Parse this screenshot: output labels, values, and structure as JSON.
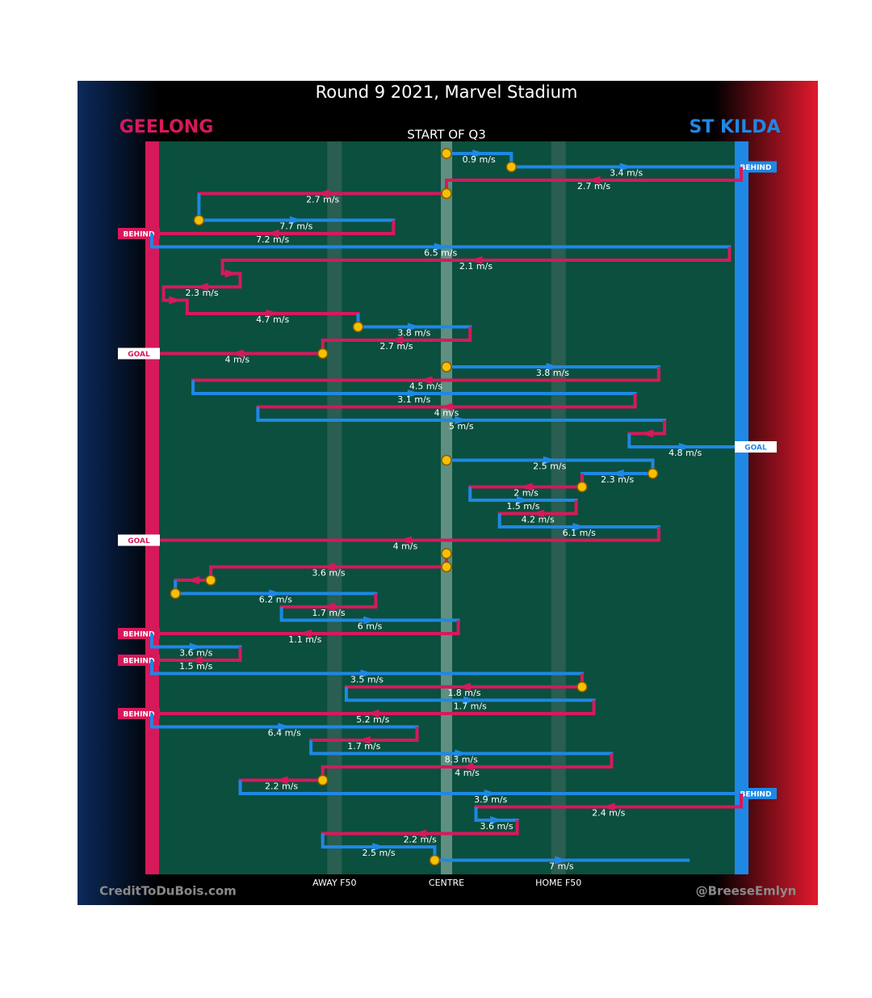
{
  "chart_data": {
    "type": "flow",
    "title": "Round 9 2021, Marvel Stadium",
    "subtitle": "START OF Q3",
    "teams": [
      {
        "name": "GEELONG",
        "color": "#d6195b"
      },
      {
        "name": "ST KILDA",
        "color": "#1e88e5"
      }
    ],
    "xlim": [
      0,
      100
    ],
    "xticks": [
      {
        "value": 31,
        "label": "AWAY F50"
      },
      {
        "value": 50,
        "label": "CENTRE"
      },
      {
        "value": 69,
        "label": "HOME F50"
      }
    ],
    "credits": [
      "CreditToDuBois.com",
      "@BreeseEmlyn"
    ],
    "segments": [
      {
        "team": "ST KILDA",
        "from": 50,
        "to": 61,
        "label": "0.9 m/s",
        "ball_up": true
      },
      {
        "team": "ST KILDA",
        "from": 61,
        "to": 100,
        "label": "3.4 m/s",
        "ball_up": true,
        "end": "BEHIND"
      },
      {
        "team": "GEELONG",
        "from": 100,
        "to": 50,
        "label": "2.7 m/s"
      },
      {
        "team": "GEELONG",
        "from": 50,
        "to": 8,
        "label": "2.7 m/s",
        "ball_up": true
      },
      null,
      {
        "team": "ST KILDA",
        "from": 8,
        "to": 41,
        "label": "7.7 m/s",
        "ball_up": true
      },
      {
        "team": "GEELONG",
        "from": 41,
        "to": 0,
        "label": "7.2 m/s",
        "end": "BEHIND"
      },
      {
        "team": "ST KILDA",
        "from": 0,
        "to": 98,
        "label": "6.5 m/s"
      },
      {
        "team": "GEELONG",
        "from": 98,
        "to": 12,
        "label": "2.1 m/s"
      },
      {
        "team": "GEELONG",
        "from": 12,
        "to": 15
      },
      {
        "team": "GEELONG",
        "from": 15,
        "to": 2,
        "label": "2.3 m/s"
      },
      {
        "team": "GEELONG",
        "from": 2,
        "to": 6
      },
      {
        "team": "GEELONG",
        "from": 6,
        "to": 35,
        "label": "4.7 m/s"
      },
      {
        "team": "ST KILDA",
        "from": 35,
        "to": 54,
        "label": "3.8 m/s",
        "ball_up": true
      },
      {
        "team": "GEELONG",
        "from": 54,
        "to": 29,
        "label": "2.7 m/s"
      },
      {
        "team": "GEELONG",
        "from": 29,
        "to": 0,
        "label": "4 m/s",
        "ball_up": true,
        "end": "GOAL"
      },
      {
        "team": "ST KILDA",
        "from": 50,
        "to": 86,
        "label": "3.8 m/s",
        "ball_up": true
      },
      {
        "team": "GEELONG",
        "from": 86,
        "to": 7,
        "label": "4.5 m/s"
      },
      {
        "team": "ST KILDA",
        "from": 7,
        "to": 82,
        "label": "3.1 m/s"
      },
      {
        "team": "GEELONG",
        "from": 82,
        "to": 18,
        "label": "4 m/s"
      },
      {
        "team": "ST KILDA",
        "from": 18,
        "to": 87,
        "label": "5 m/s"
      },
      {
        "team": "GEELONG",
        "from": 87,
        "to": 81
      },
      {
        "team": "ST KILDA",
        "from": 81,
        "to": 100,
        "label": "4.8 m/s",
        "end": "GOAL"
      },
      {
        "team": "ST KILDA",
        "from": 50,
        "to": 85,
        "label": "2.5 m/s",
        "ball_up": true
      },
      {
        "team": "ST KILDA",
        "from": 85,
        "to": 73,
        "label": "2.3 m/s",
        "ball_up": true
      },
      {
        "team": "GEELONG",
        "from": 73,
        "to": 54,
        "label": "2 m/s",
        "ball_up": true
      },
      {
        "team": "ST KILDA",
        "from": 54,
        "to": 72,
        "label": "1.5 m/s"
      },
      {
        "team": "GEELONG",
        "from": 72,
        "to": 59,
        "label": "4.2 m/s"
      },
      {
        "team": "ST KILDA",
        "from": 59,
        "to": 86,
        "label": "6.1 m/s"
      },
      {
        "team": "GEELONG",
        "from": 86,
        "to": 0,
        "label": "4 m/s",
        "end": "GOAL"
      },
      {
        "team": "ST KILDA",
        "from": 50,
        "to": 50,
        "ball_up": true
      },
      {
        "team": "GEELONG",
        "from": 50,
        "to": 10,
        "label": "3.6 m/s",
        "ball_up": true
      },
      {
        "team": "GEELONG",
        "from": 10,
        "to": 4,
        "ball_up": true
      },
      {
        "team": "ST KILDA",
        "from": 4,
        "to": 38,
        "label": "6.2 m/s",
        "ball_up": true
      },
      {
        "team": "GEELONG",
        "from": 38,
        "to": 22,
        "label": "1.7 m/s"
      },
      {
        "team": "ST KILDA",
        "from": 22,
        "to": 52,
        "label": "6 m/s"
      },
      {
        "team": "GEELONG",
        "from": 52,
        "to": 0,
        "label": "1.1 m/s",
        "end": "BEHIND"
      },
      {
        "team": "ST KILDA",
        "from": 0,
        "to": 15,
        "label": "3.6 m/s"
      },
      {
        "team": "GEELONG",
        "from": 15,
        "to": 0,
        "label": "1.5 m/s",
        "end": "BEHIND"
      },
      {
        "team": "ST KILDA",
        "from": 0,
        "to": 73,
        "label": "3.5 m/s"
      },
      {
        "team": "GEELONG",
        "from": 73,
        "to": 33,
        "label": "1.8 m/s",
        "ball_up": true
      },
      {
        "team": "ST KILDA",
        "from": 33,
        "to": 75,
        "label": "1.7 m/s"
      },
      {
        "team": "GEELONG",
        "from": 75,
        "to": 0,
        "label": "5.2 m/s",
        "end": "BEHIND"
      },
      {
        "team": "ST KILDA",
        "from": 0,
        "to": 45,
        "label": "6.4 m/s"
      },
      {
        "team": "GEELONG",
        "from": 45,
        "to": 27,
        "label": "1.7 m/s"
      },
      {
        "team": "ST KILDA",
        "from": 27,
        "to": 78,
        "label": "8.3 m/s"
      },
      {
        "team": "GEELONG",
        "from": 78,
        "to": 29,
        "label": "4 m/s"
      },
      {
        "team": "GEELONG",
        "from": 29,
        "to": 15,
        "label": "2.2 m/s",
        "ball_up": true
      },
      {
        "team": "ST KILDA",
        "from": 15,
        "to": 100,
        "label": "3.9 m/s",
        "end": "BEHIND"
      },
      {
        "team": "GEELONG",
        "from": 100,
        "to": 55,
        "label": "2.4 m/s"
      },
      {
        "team": "ST KILDA",
        "from": 55,
        "to": 62,
        "label": "3.6 m/s"
      },
      {
        "team": "GEELONG",
        "from": 62,
        "to": 29,
        "label": "2.2 m/s"
      },
      {
        "team": "ST KILDA",
        "from": 29,
        "to": 48,
        "label": "2.5 m/s"
      },
      {
        "team": "ST KILDA",
        "from": 48,
        "to": 91,
        "label": "7 m/s",
        "ball_up": true
      }
    ]
  }
}
